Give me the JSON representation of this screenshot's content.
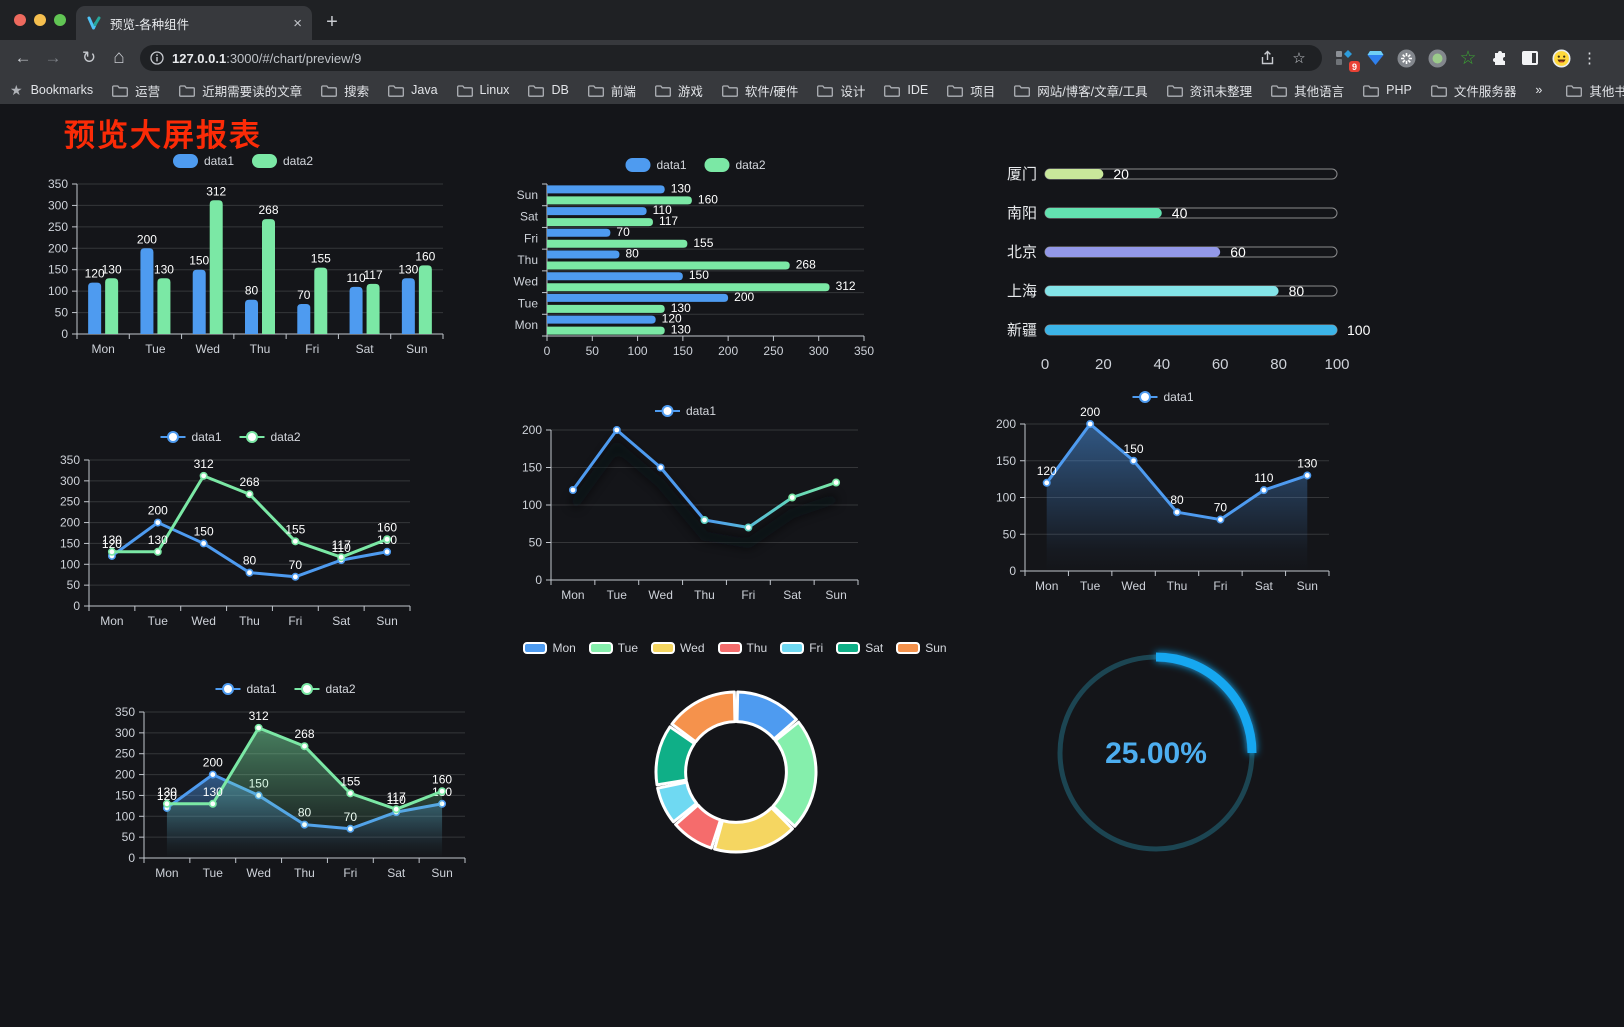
{
  "browser": {
    "tab": {
      "title": "预览-各种组件",
      "close_glyph": "×",
      "new_tab_glyph": "+"
    },
    "url": {
      "host": "127.0.0.1",
      "rest": ":3000/#/chart/preview/9"
    },
    "extension_badge": "9",
    "bookmarks_label": "Bookmarks",
    "bookmarks": [
      "运营",
      "近期需要读的文章",
      "搜索",
      "Java",
      "Linux",
      "DB",
      "前端",
      "游戏",
      "软件/硬件",
      "设计",
      "IDE",
      "项目",
      "网站/博客/文章/工具",
      "资讯未整理",
      "其他语言",
      "PHP",
      "文件服务器"
    ],
    "bookmarks_overflow": "»",
    "other_bookmarks": "其他书签"
  },
  "page": {
    "title": "预览大屏报表",
    "title_color": "#FB2B07",
    "background": "#141519"
  },
  "chart_data": [
    {
      "id": "bar-vertical",
      "type": "bar",
      "categories": [
        "Mon",
        "Tue",
        "Wed",
        "Thu",
        "Fri",
        "Sat",
        "Sun"
      ],
      "series": [
        {
          "name": "data1",
          "color": "#4E9BF0",
          "values": [
            120,
            200,
            150,
            80,
            70,
            110,
            130
          ]
        },
        {
          "name": "data2",
          "color": "#7BE8A5",
          "values": [
            130,
            130,
            312,
            268,
            155,
            117,
            160
          ]
        }
      ],
      "ylim": [
        0,
        350
      ],
      "yticks": [
        0,
        50,
        100,
        150,
        200,
        250,
        300,
        350
      ],
      "legend_position": "top",
      "value_labels": true,
      "grid": true
    },
    {
      "id": "bar-horizontal",
      "type": "bar-horizontal",
      "categories_top_to_bottom": [
        "Sun",
        "Sat",
        "Fri",
        "Thu",
        "Wed",
        "Tue",
        "Mon"
      ],
      "series": [
        {
          "name": "data1",
          "color": "#4E9BF0",
          "values": [
            130,
            110,
            70,
            80,
            150,
            200,
            120
          ]
        },
        {
          "name": "data2",
          "color": "#7BE8A5",
          "values": [
            160,
            117,
            155,
            268,
            312,
            130,
            130
          ]
        }
      ],
      "xlim": [
        0,
        350
      ],
      "xticks": [
        0,
        50,
        100,
        150,
        200,
        250,
        300,
        350
      ],
      "legend_position": "top",
      "value_labels": true,
      "grid": true
    },
    {
      "id": "progress-bars",
      "type": "progress",
      "max": 100,
      "xticks": [
        0,
        20,
        40,
        60,
        80,
        100
      ],
      "items": [
        {
          "label": "厦门",
          "value": 20,
          "color": "#C9E89B"
        },
        {
          "label": "南阳",
          "value": 40,
          "color": "#63E2B0"
        },
        {
          "label": "北京",
          "value": 60,
          "color": "#9398E8"
        },
        {
          "label": "上海",
          "value": 80,
          "color": "#84E4E8"
        },
        {
          "label": "新疆",
          "value": 100,
          "color": "#3CB4E7"
        }
      ]
    },
    {
      "id": "line-two-series",
      "type": "line",
      "categories": [
        "Mon",
        "Tue",
        "Wed",
        "Thu",
        "Fri",
        "Sat",
        "Sun"
      ],
      "series": [
        {
          "name": "data1",
          "color": "#4E9BF0",
          "values": [
            120,
            200,
            150,
            80,
            70,
            110,
            130
          ]
        },
        {
          "name": "data2",
          "color": "#7BE8A5",
          "values": [
            130,
            130,
            312,
            268,
            155,
            117,
            160
          ]
        }
      ],
      "ylim": [
        0,
        350
      ],
      "yticks": [
        0,
        50,
        100,
        150,
        200,
        250,
        300,
        350
      ],
      "legend_position": "top",
      "value_labels": true,
      "grid": true
    },
    {
      "id": "line-gradient",
      "type": "line",
      "categories": [
        "Mon",
        "Tue",
        "Wed",
        "Thu",
        "Fri",
        "Sat",
        "Sun"
      ],
      "series": [
        {
          "name": "data1",
          "gradient": [
            "#4E9BF0",
            "#7BE8A5"
          ],
          "shadow": true,
          "values": [
            120,
            200,
            150,
            80,
            70,
            110,
            130
          ]
        }
      ],
      "ylim": [
        0,
        200
      ],
      "yticks": [
        0,
        50,
        100,
        150,
        200
      ],
      "legend_position": "top",
      "value_labels": false,
      "grid": true
    },
    {
      "id": "area-blue",
      "type": "line",
      "categories": [
        "Mon",
        "Tue",
        "Wed",
        "Thu",
        "Fri",
        "Sat",
        "Sun"
      ],
      "series": [
        {
          "name": "data1",
          "color": "#4E9BF0",
          "area": true,
          "values": [
            120,
            200,
            150,
            80,
            70,
            110,
            130
          ]
        }
      ],
      "ylim": [
        0,
        200
      ],
      "yticks": [
        0,
        50,
        100,
        150,
        200
      ],
      "legend_position": "top",
      "value_labels": true,
      "grid": true
    },
    {
      "id": "area-two-series",
      "type": "line",
      "categories": [
        "Mon",
        "Tue",
        "Wed",
        "Thu",
        "Fri",
        "Sat",
        "Sun"
      ],
      "series": [
        {
          "name": "data1",
          "color": "#4E9BF0",
          "area": true,
          "values": [
            120,
            200,
            150,
            80,
            70,
            110,
            130
          ]
        },
        {
          "name": "data2",
          "color": "#7BE8A5",
          "area": true,
          "values": [
            130,
            130,
            312,
            268,
            155,
            117,
            160
          ]
        }
      ],
      "ylim": [
        0,
        350
      ],
      "yticks": [
        0,
        50,
        100,
        150,
        200,
        250,
        300,
        350
      ],
      "legend_position": "top",
      "value_labels": true,
      "grid": true
    },
    {
      "id": "donut",
      "type": "pie",
      "inner_radius_ratio": 0.63,
      "legend_position": "top",
      "items": [
        {
          "label": "Mon",
          "value": 120,
          "color": "#4E9BF0"
        },
        {
          "label": "Tue",
          "value": 200,
          "color": "#85EFAC"
        },
        {
          "label": "Wed",
          "value": 150,
          "color": "#F5D661"
        },
        {
          "label": "Thu",
          "value": 80,
          "color": "#F56C6C"
        },
        {
          "label": "Fri",
          "value": 70,
          "color": "#6FD9F2"
        },
        {
          "label": "Sat",
          "value": 110,
          "color": "#0FAF87"
        },
        {
          "label": "Sun",
          "value": 130,
          "color": "#F5924C"
        }
      ]
    },
    {
      "id": "gauge",
      "type": "gauge",
      "value": 25,
      "label": "25.00%",
      "progress_color": "#18A7F0",
      "track_color": "#1C4552",
      "text_color": "#4DAEF0"
    }
  ]
}
